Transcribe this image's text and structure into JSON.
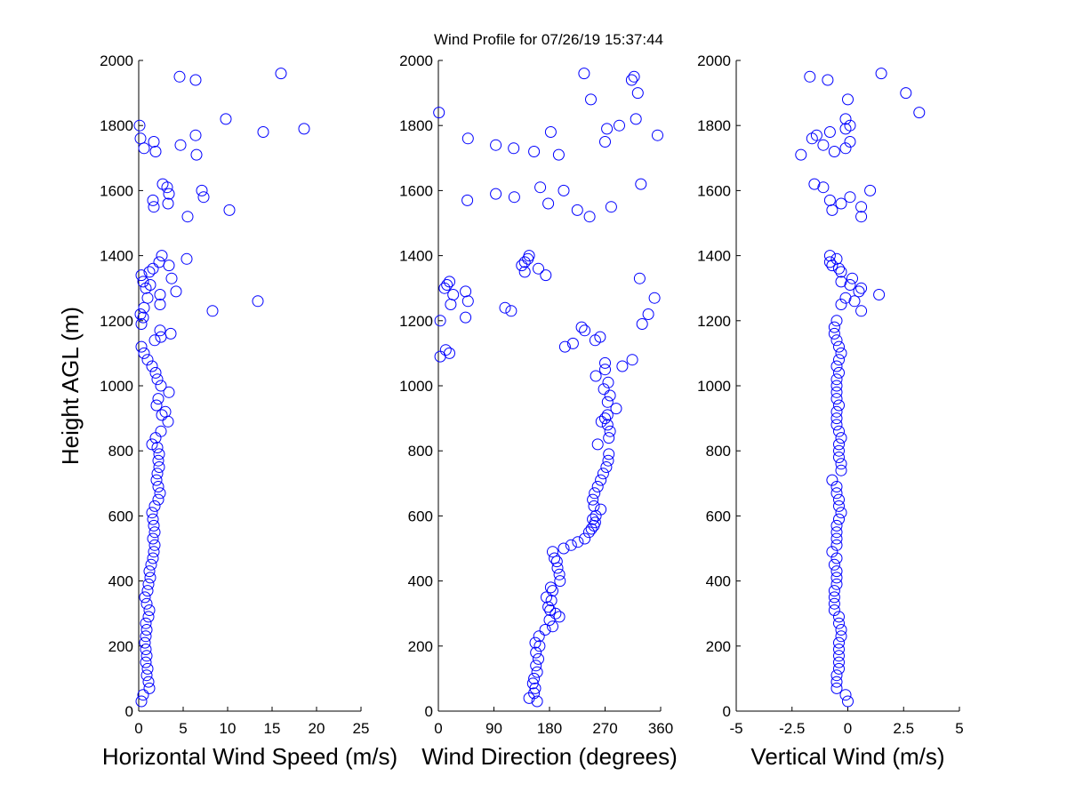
{
  "title": "Wind Profile for  07/26/19 15:37:44",
  "chart_data": [
    {
      "type": "scatter",
      "xlabel": "Horizontal Wind Speed (m/s)",
      "ylabel": "Height AGL (m)",
      "xlim": [
        0,
        25
      ],
      "ylim": [
        0,
        2000
      ],
      "xticks": [
        0,
        5,
        10,
        15,
        20,
        25
      ],
      "xtick_labels": [
        "0",
        "5",
        "10",
        "15",
        "20",
        "25"
      ],
      "yticks": [
        0,
        200,
        400,
        600,
        800,
        1000,
        1200,
        1400,
        1600,
        1800,
        2000
      ],
      "ytick_labels": [
        "0",
        "200",
        "400",
        "600",
        "800",
        "1000",
        "1200",
        "1400",
        "1600",
        "1800",
        "2000"
      ],
      "marker_color": "#0000ff",
      "points": [
        [
          0.3,
          30
        ],
        [
          0.5,
          50
        ],
        [
          1.2,
          70
        ],
        [
          1.1,
          90
        ],
        [
          0.9,
          110
        ],
        [
          1.0,
          130
        ],
        [
          0.8,
          150
        ],
        [
          0.9,
          170
        ],
        [
          0.8,
          190
        ],
        [
          0.7,
          210
        ],
        [
          0.8,
          230
        ],
        [
          0.9,
          250
        ],
        [
          0.8,
          270
        ],
        [
          1.1,
          290
        ],
        [
          1.2,
          310
        ],
        [
          0.9,
          330
        ],
        [
          0.7,
          350
        ],
        [
          1.0,
          370
        ],
        [
          1.1,
          390
        ],
        [
          1.3,
          410
        ],
        [
          1.2,
          430
        ],
        [
          1.4,
          450
        ],
        [
          1.6,
          470
        ],
        [
          1.7,
          490
        ],
        [
          1.8,
          510
        ],
        [
          1.6,
          530
        ],
        [
          1.8,
          550
        ],
        [
          1.7,
          570
        ],
        [
          1.6,
          590
        ],
        [
          1.5,
          610
        ],
        [
          1.8,
          630
        ],
        [
          2.2,
          650
        ],
        [
          2.4,
          670
        ],
        [
          2.2,
          690
        ],
        [
          2.0,
          710
        ],
        [
          2.1,
          730
        ],
        [
          2.3,
          750
        ],
        [
          2.2,
          770
        ],
        [
          2.3,
          790
        ],
        [
          2.1,
          810
        ],
        [
          1.5,
          820
        ],
        [
          1.9,
          840
        ],
        [
          2.5,
          860
        ],
        [
          3.3,
          890
        ],
        [
          2.6,
          910
        ],
        [
          3.0,
          920
        ],
        [
          2.0,
          940
        ],
        [
          2.2,
          960
        ],
        [
          3.4,
          980
        ],
        [
          2.5,
          1000
        ],
        [
          2.1,
          1020
        ],
        [
          1.9,
          1040
        ],
        [
          1.5,
          1060
        ],
        [
          1.0,
          1080
        ],
        [
          0.6,
          1100
        ],
        [
          0.3,
          1120
        ],
        [
          1.8,
          1140
        ],
        [
          2.5,
          1150
        ],
        [
          3.6,
          1160
        ],
        [
          2.4,
          1170
        ],
        [
          0.3,
          1190
        ],
        [
          0.5,
          1210
        ],
        [
          0.2,
          1220
        ],
        [
          8.3,
          1230
        ],
        [
          0.6,
          1240
        ],
        [
          2.4,
          1250
        ],
        [
          13.4,
          1260
        ],
        [
          1.0,
          1270
        ],
        [
          2.4,
          1280
        ],
        [
          4.2,
          1290
        ],
        [
          0.8,
          1300
        ],
        [
          1.3,
          1310
        ],
        [
          0.5,
          1320
        ],
        [
          3.7,
          1330
        ],
        [
          0.3,
          1340
        ],
        [
          1.2,
          1350
        ],
        [
          1.6,
          1360
        ],
        [
          3.4,
          1370
        ],
        [
          2.3,
          1380
        ],
        [
          5.4,
          1390
        ],
        [
          2.6,
          1400
        ],
        [
          5.5,
          1520
        ],
        [
          10.2,
          1540
        ],
        [
          1.7,
          1550
        ],
        [
          3.3,
          1560
        ],
        [
          1.6,
          1570
        ],
        [
          7.3,
          1580
        ],
        [
          3.4,
          1590
        ],
        [
          7.1,
          1600
        ],
        [
          3.2,
          1610
        ],
        [
          2.7,
          1620
        ],
        [
          6.5,
          1710
        ],
        [
          1.9,
          1720
        ],
        [
          0.6,
          1730
        ],
        [
          4.7,
          1740
        ],
        [
          1.7,
          1750
        ],
        [
          0.2,
          1760
        ],
        [
          6.4,
          1770
        ],
        [
          14.0,
          1780
        ],
        [
          18.6,
          1790
        ],
        [
          0.1,
          1800
        ],
        [
          9.8,
          1820
        ],
        [
          6.4,
          1940
        ],
        [
          4.6,
          1950
        ],
        [
          16.0,
          1960
        ]
      ]
    },
    {
      "type": "scatter",
      "xlabel": "Wind Direction (degrees)",
      "ylabel": "",
      "xlim": [
        0,
        360
      ],
      "ylim": [
        0,
        2000
      ],
      "xticks": [
        0,
        90,
        180,
        270,
        360
      ],
      "xtick_labels": [
        "0",
        "90",
        "180",
        "270",
        "360"
      ],
      "yticks": [
        0,
        200,
        400,
        600,
        800,
        1000,
        1200,
        1400,
        1600,
        1800,
        2000
      ],
      "ytick_labels": [
        "0",
        "200",
        "400",
        "600",
        "800",
        "1000",
        "1200",
        "1400",
        "1600",
        "1800",
        "2000"
      ],
      "marker_color": "#0000ff",
      "points": [
        [
          160,
          30
        ],
        [
          147,
          40
        ],
        [
          155,
          55
        ],
        [
          157,
          70
        ],
        [
          153,
          85
        ],
        [
          155,
          100
        ],
        [
          160,
          120
        ],
        [
          158,
          140
        ],
        [
          162,
          160
        ],
        [
          158,
          180
        ],
        [
          164,
          200
        ],
        [
          157,
          210
        ],
        [
          163,
          230
        ],
        [
          173,
          250
        ],
        [
          185,
          260
        ],
        [
          180,
          280
        ],
        [
          196,
          290
        ],
        [
          190,
          300
        ],
        [
          181,
          310
        ],
        [
          178,
          320
        ],
        [
          183,
          340
        ],
        [
          175,
          350
        ],
        [
          185,
          370
        ],
        [
          182,
          380
        ],
        [
          197,
          400
        ],
        [
          196,
          420
        ],
        [
          193,
          440
        ],
        [
          192,
          460
        ],
        [
          188,
          470
        ],
        [
          185,
          490
        ],
        [
          203,
          500
        ],
        [
          215,
          510
        ],
        [
          226,
          520
        ],
        [
          237,
          530
        ],
        [
          244,
          550
        ],
        [
          248,
          560
        ],
        [
          252,
          570
        ],
        [
          254,
          580
        ],
        [
          250,
          590
        ],
        [
          255,
          600
        ],
        [
          263,
          620
        ],
        [
          252,
          630
        ],
        [
          250,
          650
        ],
        [
          253,
          670
        ],
        [
          258,
          690
        ],
        [
          263,
          710
        ],
        [
          267,
          730
        ],
        [
          272,
          750
        ],
        [
          275,
          770
        ],
        [
          276,
          790
        ],
        [
          258,
          820
        ],
        [
          276,
          840
        ],
        [
          278,
          860
        ],
        [
          274,
          880
        ],
        [
          264,
          890
        ],
        [
          270,
          900
        ],
        [
          274,
          910
        ],
        [
          288,
          930
        ],
        [
          274,
          950
        ],
        [
          278,
          970
        ],
        [
          268,
          990
        ],
        [
          275,
          1010
        ],
        [
          255,
          1030
        ],
        [
          270,
          1050
        ],
        [
          270,
          1070
        ],
        [
          298,
          1060
        ],
        [
          314,
          1080
        ],
        [
          3,
          1090
        ],
        [
          18,
          1100
        ],
        [
          12,
          1110
        ],
        [
          205,
          1120
        ],
        [
          218,
          1130
        ],
        [
          254,
          1140
        ],
        [
          262,
          1150
        ],
        [
          237,
          1170
        ],
        [
          232,
          1180
        ],
        [
          330,
          1190
        ],
        [
          3,
          1200
        ],
        [
          44,
          1210
        ],
        [
          340,
          1220
        ],
        [
          118,
          1230
        ],
        [
          108,
          1240
        ],
        [
          20,
          1250
        ],
        [
          48,
          1260
        ],
        [
          350,
          1270
        ],
        [
          24,
          1280
        ],
        [
          44,
          1290
        ],
        [
          10,
          1300
        ],
        [
          14,
          1310
        ],
        [
          18,
          1320
        ],
        [
          326,
          1330
        ],
        [
          140,
          1350
        ],
        [
          174,
          1340
        ],
        [
          135,
          1370
        ],
        [
          162,
          1360
        ],
        [
          140,
          1380
        ],
        [
          145,
          1390
        ],
        [
          147,
          1400
        ],
        [
          245,
          1520
        ],
        [
          225,
          1540
        ],
        [
          280,
          1550
        ],
        [
          47,
          1570
        ],
        [
          178,
          1560
        ],
        [
          93,
          1590
        ],
        [
          123,
          1580
        ],
        [
          203,
          1600
        ],
        [
          165,
          1610
        ],
        [
          328,
          1620
        ],
        [
          195,
          1710
        ],
        [
          155,
          1720
        ],
        [
          122,
          1730
        ],
        [
          93,
          1740
        ],
        [
          270,
          1750
        ],
        [
          48,
          1760
        ],
        [
          355,
          1770
        ],
        [
          182,
          1780
        ],
        [
          273,
          1790
        ],
        [
          293,
          1800
        ],
        [
          320,
          1820
        ],
        [
          1,
          1840
        ],
        [
          247,
          1880
        ],
        [
          323,
          1900
        ],
        [
          313,
          1940
        ],
        [
          317,
          1950
        ],
        [
          236,
          1960
        ]
      ]
    },
    {
      "type": "scatter",
      "xlabel": "Vertical Wind (m/s)",
      "ylabel": "",
      "xlim": [
        -5,
        5
      ],
      "ylim": [
        0,
        2000
      ],
      "xticks": [
        -5,
        -2.5,
        0,
        2.5,
        5
      ],
      "xtick_labels": [
        "-5",
        "-2.5",
        "0",
        "2.5",
        "5"
      ],
      "yticks": [
        0,
        200,
        400,
        600,
        800,
        1000,
        1200,
        1400,
        1600,
        1800,
        2000
      ],
      "ytick_labels": [
        "0",
        "200",
        "400",
        "600",
        "800",
        "1000",
        "1200",
        "1400",
        "1600",
        "1800",
        "2000"
      ],
      "marker_color": "#0000ff",
      "points": [
        [
          0.0,
          30
        ],
        [
          -0.1,
          50
        ],
        [
          -0.5,
          70
        ],
        [
          -0.5,
          90
        ],
        [
          -0.5,
          110
        ],
        [
          -0.4,
          130
        ],
        [
          -0.4,
          150
        ],
        [
          -0.4,
          170
        ],
        [
          -0.4,
          190
        ],
        [
          -0.4,
          210
        ],
        [
          -0.3,
          230
        ],
        [
          -0.3,
          250
        ],
        [
          -0.4,
          270
        ],
        [
          -0.4,
          290
        ],
        [
          -0.6,
          310
        ],
        [
          -0.6,
          330
        ],
        [
          -0.6,
          350
        ],
        [
          -0.6,
          370
        ],
        [
          -0.5,
          390
        ],
        [
          -0.5,
          410
        ],
        [
          -0.5,
          430
        ],
        [
          -0.6,
          450
        ],
        [
          -0.5,
          470
        ],
        [
          -0.7,
          490
        ],
        [
          -0.5,
          510
        ],
        [
          -0.5,
          530
        ],
        [
          -0.5,
          550
        ],
        [
          -0.5,
          570
        ],
        [
          -0.4,
          590
        ],
        [
          -0.3,
          610
        ],
        [
          -0.4,
          630
        ],
        [
          -0.4,
          650
        ],
        [
          -0.5,
          670
        ],
        [
          -0.5,
          690
        ],
        [
          -0.7,
          710
        ],
        [
          -0.3,
          740
        ],
        [
          -0.3,
          760
        ],
        [
          -0.4,
          780
        ],
        [
          -0.4,
          800
        ],
        [
          -0.4,
          820
        ],
        [
          -0.3,
          840
        ],
        [
          -0.4,
          860
        ],
        [
          -0.5,
          880
        ],
        [
          -0.5,
          900
        ],
        [
          -0.5,
          920
        ],
        [
          -0.4,
          940
        ],
        [
          -0.5,
          960
        ],
        [
          -0.5,
          980
        ],
        [
          -0.5,
          1000
        ],
        [
          -0.5,
          1020
        ],
        [
          -0.4,
          1040
        ],
        [
          -0.5,
          1060
        ],
        [
          -0.4,
          1080
        ],
        [
          -0.3,
          1100
        ],
        [
          -0.4,
          1120
        ],
        [
          -0.5,
          1140
        ],
        [
          -0.6,
          1160
        ],
        [
          -0.6,
          1180
        ],
        [
          -0.5,
          1200
        ],
        [
          0.6,
          1230
        ],
        [
          -0.3,
          1250
        ],
        [
          0.3,
          1260
        ],
        [
          -0.1,
          1270
        ],
        [
          1.4,
          1280
        ],
        [
          0.5,
          1290
        ],
        [
          0.6,
          1300
        ],
        [
          0.1,
          1310
        ],
        [
          -0.3,
          1320
        ],
        [
          0.2,
          1330
        ],
        [
          -0.3,
          1350
        ],
        [
          -0.4,
          1360
        ],
        [
          -0.7,
          1370
        ],
        [
          -0.8,
          1380
        ],
        [
          -0.5,
          1390
        ],
        [
          -0.8,
          1400
        ],
        [
          0.6,
          1520
        ],
        [
          -0.7,
          1540
        ],
        [
          0.6,
          1550
        ],
        [
          -0.3,
          1560
        ],
        [
          -0.8,
          1570
        ],
        [
          0.1,
          1580
        ],
        [
          -1.1,
          1610
        ],
        [
          1.0,
          1600
        ],
        [
          -1.5,
          1620
        ],
        [
          -2.1,
          1710
        ],
        [
          -0.6,
          1720
        ],
        [
          -0.1,
          1730
        ],
        [
          -1.1,
          1740
        ],
        [
          0.1,
          1750
        ],
        [
          -1.6,
          1760
        ],
        [
          -1.4,
          1770
        ],
        [
          -0.8,
          1780
        ],
        [
          -0.1,
          1790
        ],
        [
          0.1,
          1800
        ],
        [
          -0.1,
          1820
        ],
        [
          3.2,
          1840
        ],
        [
          0.0,
          1880
        ],
        [
          2.6,
          1900
        ],
        [
          -0.9,
          1940
        ],
        [
          -1.7,
          1950
        ],
        [
          1.5,
          1960
        ]
      ]
    }
  ]
}
